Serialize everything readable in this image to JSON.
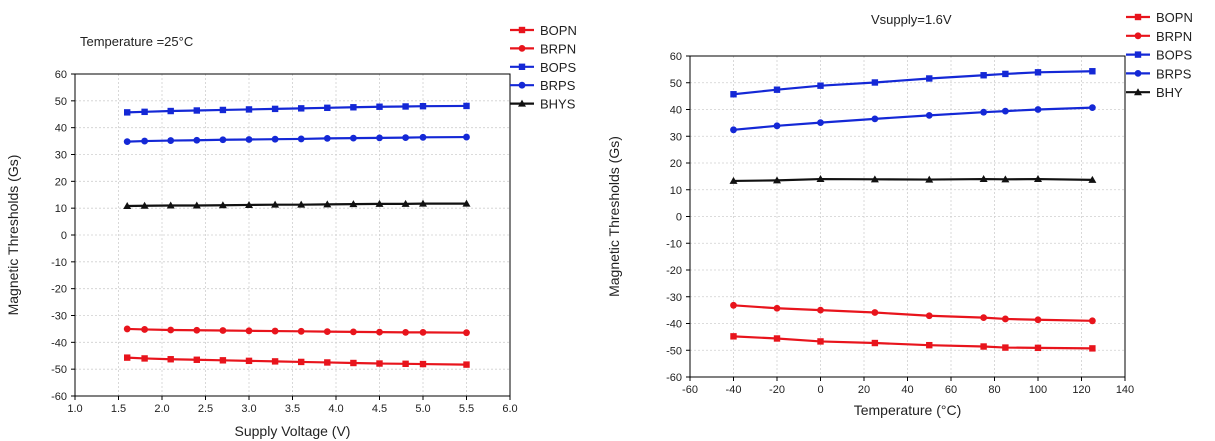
{
  "chart_data": [
    {
      "type": "line",
      "title": "Temperature =25°C",
      "xlabel": "Supply Voltage (V)",
      "ylabel": "Magnetic Thresholds (Gs)",
      "xlim": [
        1.0,
        6.0
      ],
      "ylim": [
        -60,
        60
      ],
      "xticks": [
        "1.0",
        "1.5",
        "2.0",
        "2.5",
        "3.0",
        "3.5",
        "4.0",
        "4.5",
        "5.0",
        "5.5",
        "6.0"
      ],
      "yticks": [
        "-60",
        "-50",
        "-40",
        "-30",
        "-20",
        "-10",
        "0",
        "10",
        "20",
        "30",
        "40",
        "50",
        "60"
      ],
      "grid": true,
      "legend_position": "top-right outside",
      "x": [
        1.6,
        1.8,
        2.1,
        2.4,
        2.7,
        3.0,
        3.3,
        3.6,
        3.9,
        4.2,
        4.5,
        4.8,
        5.0,
        5.5
      ],
      "series": [
        {
          "name": "BOPN",
          "color": "#e8141c",
          "marker": "square",
          "values": [
            -45.7,
            -46.0,
            -46.3,
            -46.5,
            -46.7,
            -46.9,
            -47.1,
            -47.3,
            -47.5,
            -47.7,
            -47.9,
            -48.0,
            -48.1,
            -48.3
          ]
        },
        {
          "name": "BRPN",
          "color": "#e8141c",
          "marker": "circle",
          "values": [
            -35.0,
            -35.2,
            -35.4,
            -35.5,
            -35.6,
            -35.7,
            -35.8,
            -35.9,
            -36.0,
            -36.1,
            -36.2,
            -36.3,
            -36.3,
            -36.4
          ]
        },
        {
          "name": "BOPS",
          "color": "#1428d6",
          "marker": "square",
          "values": [
            45.7,
            45.9,
            46.2,
            46.4,
            46.6,
            46.8,
            47.0,
            47.2,
            47.4,
            47.6,
            47.8,
            47.9,
            48.0,
            48.1
          ]
        },
        {
          "name": "BRPS",
          "color": "#1428d6",
          "marker": "circle",
          "values": [
            34.8,
            35.0,
            35.2,
            35.3,
            35.5,
            35.6,
            35.7,
            35.8,
            36.0,
            36.1,
            36.2,
            36.3,
            36.4,
            36.5
          ]
        },
        {
          "name": "BHYS",
          "color": "#111111",
          "marker": "triangle",
          "values": [
            10.8,
            10.9,
            11.0,
            11.0,
            11.1,
            11.2,
            11.3,
            11.3,
            11.4,
            11.5,
            11.6,
            11.6,
            11.7,
            11.7
          ]
        }
      ]
    },
    {
      "type": "line",
      "title": "Vsupply=1.6V",
      "xlabel": "Temperature (°C)",
      "ylabel": "Magnetic Thresholds (Gs)",
      "xlim": [
        -60,
        140
      ],
      "ylim": [
        -60,
        60
      ],
      "xticks": [
        "-60",
        "-40",
        "-20",
        "0",
        "20",
        "40",
        "60",
        "80",
        "100",
        "120",
        "140"
      ],
      "yticks": [
        "-60",
        "-50",
        "-40",
        "-30",
        "-20",
        "-10",
        "0",
        "10",
        "20",
        "30",
        "40",
        "50",
        "60"
      ],
      "grid": true,
      "legend_position": "top-right outside",
      "x": [
        -40,
        -20,
        0,
        25,
        50,
        75,
        85,
        100,
        125
      ],
      "series": [
        {
          "name": "BOPN",
          "color": "#e8141c",
          "marker": "square",
          "values": [
            -44.8,
            -45.6,
            -46.7,
            -47.3,
            -48.1,
            -48.6,
            -49.0,
            -49.1,
            -49.3
          ]
        },
        {
          "name": "BRPN",
          "color": "#e8141c",
          "marker": "circle",
          "values": [
            -33.2,
            -34.3,
            -35.0,
            -35.9,
            -37.1,
            -37.8,
            -38.3,
            -38.6,
            -39.0
          ]
        },
        {
          "name": "BOPS",
          "color": "#1428d6",
          "marker": "square",
          "values": [
            45.7,
            47.4,
            48.9,
            50.1,
            51.6,
            52.8,
            53.3,
            53.9,
            54.3
          ]
        },
        {
          "name": "BRPS",
          "color": "#1428d6",
          "marker": "circle",
          "values": [
            32.4,
            33.9,
            35.1,
            36.5,
            37.8,
            39.0,
            39.4,
            40.0,
            40.7
          ]
        },
        {
          "name": "BHY",
          "color": "#111111",
          "marker": "triangle",
          "values": [
            13.3,
            13.5,
            14.0,
            13.9,
            13.8,
            14.0,
            13.9,
            14.0,
            13.7
          ]
        }
      ]
    }
  ]
}
